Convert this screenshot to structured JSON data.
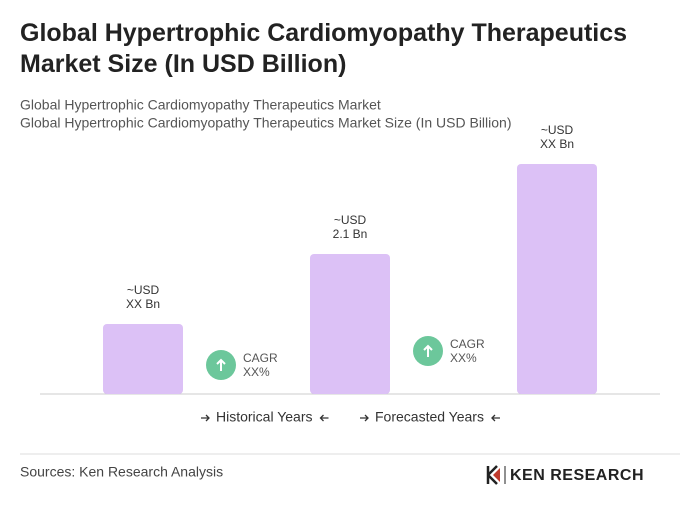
{
  "chart_data": {
    "type": "bar",
    "title": "Global Hypertrophic Cardiomyopathy Therapeutics Market Size (In USD Billion)",
    "subtitle": [
      "Global Hypertrophic Cardiomyopathy Therapeutics Market",
      "Global Hypertrophic Cardiomyopathy Therapeutics Market Size (In USD Billion)"
    ],
    "values": [
      1.05,
      2.1,
      3.45
    ],
    "value_labels": [
      [
        "~USD",
        "XX Bn"
      ],
      [
        "~USD",
        "2.1 Bn"
      ],
      [
        "~USD",
        "XX Bn"
      ]
    ],
    "color": "#dcc1f6",
    "annotations": [
      [
        "CAGR",
        "XX%"
      ],
      [
        "CAGR",
        "XX%"
      ]
    ],
    "annotation_color": "#6cc79b",
    "legend": [
      "Historical Years",
      "Forecasted Years"
    ],
    "source": "Sources: Ken Research Analysis",
    "logo": "KEN RESEARCH"
  }
}
